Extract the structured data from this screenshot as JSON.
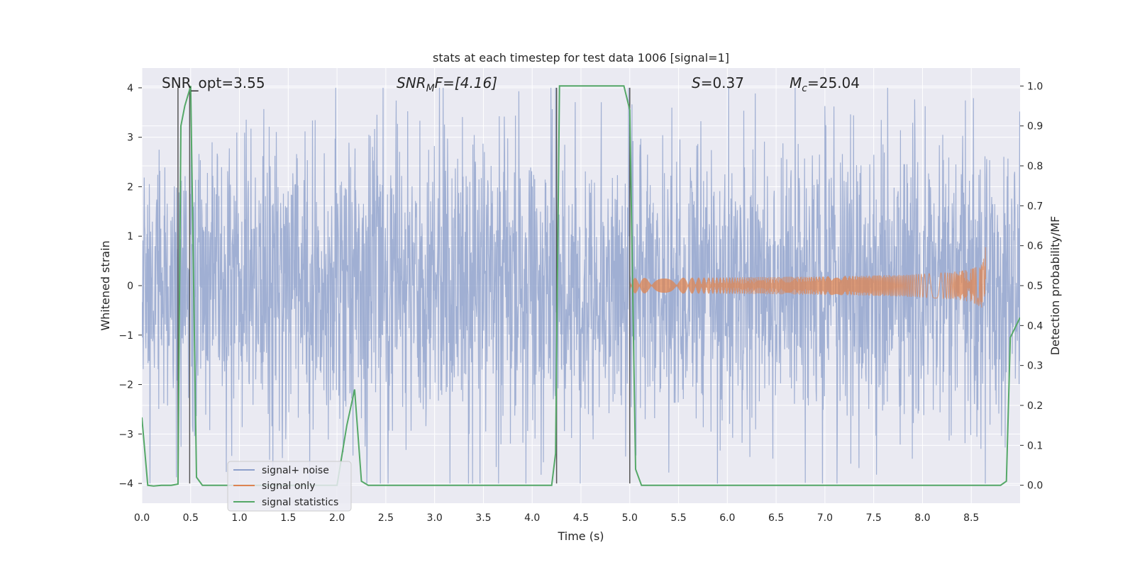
{
  "chart_data": {
    "type": "line",
    "title": "stats at each timestep for test data 1006 [signal=1]",
    "xlabel": "Time (s)",
    "ylabel_left": "Whitened strain",
    "ylabel_right": "Detection probability/MF",
    "xlim": [
      0.0,
      9.0
    ],
    "ylim_left": [
      -4.4,
      4.4
    ],
    "ylim_right": [
      -0.045,
      1.045
    ],
    "grid": true,
    "x_ticks": [
      0.0,
      0.5,
      1.0,
      1.5,
      2.0,
      2.5,
      3.0,
      3.5,
      4.0,
      4.5,
      5.0,
      5.5,
      6.0,
      6.5,
      7.0,
      7.5,
      8.0,
      8.5
    ],
    "x_tick_labels": [
      "0.0",
      "0.5",
      "1.0",
      "1.5",
      "2.0",
      "2.5",
      "3.0",
      "3.5",
      "4.0",
      "4.5",
      "5.0",
      "5.5",
      "6.0",
      "6.5",
      "7.0",
      "7.5",
      "8.0",
      "8.5"
    ],
    "y_left_ticks": [
      -4,
      -3,
      -2,
      -1,
      0,
      1,
      2,
      3,
      4
    ],
    "y_left_tick_labels": [
      "−4",
      "−3",
      "−2",
      "−1",
      "0",
      "1",
      "2",
      "3",
      "4"
    ],
    "y_right_ticks": [
      0.0,
      0.1,
      0.2,
      0.3,
      0.4,
      0.5,
      0.6,
      0.7,
      0.8,
      0.9,
      1.0
    ],
    "y_right_tick_labels": [
      "0.0",
      "0.1",
      "0.2",
      "0.3",
      "0.4",
      "0.5",
      "0.6",
      "0.7",
      "0.8",
      "0.9",
      "1.0"
    ],
    "annotations": {
      "snr_opt": "SNR_opt=3.55",
      "snr_mf_base": "SNR",
      "snr_mf_sub": "M",
      "snr_mf_rest": "F=[4.16]",
      "s_var": "S",
      "s_rest": "=0.37",
      "mc_var": "M",
      "mc_sub": "c",
      "mc_rest": "=25.04"
    },
    "legend": {
      "placement": "lower-left",
      "entries": [
        {
          "label": "signal+ noise",
          "color": "#8da0cb"
        },
        {
          "label": "signal only",
          "color": "#dd8452"
        },
        {
          "label": "signal statistics",
          "color": "#55a868"
        }
      ]
    },
    "vertical_markers": [
      0.37,
      0.49,
      4.25,
      5.0
    ],
    "vertical_marker_range": [
      -4,
      4
    ],
    "noise": {
      "name": "signal+ noise",
      "color": "#8da0cb",
      "t_range": [
        0.0,
        9.0
      ],
      "approx_amplitude": 1.6,
      "peak_max": 4.0,
      "peak_min": -4.0
    },
    "signal_only": {
      "name": "signal only",
      "color": "#dd8452",
      "t_start": 5.0,
      "t_merger": 8.65,
      "peak_amplitude": 0.85
    },
    "statistics": {
      "name": "signal statistics",
      "color": "#55a868",
      "t": [
        0.0,
        0.06,
        0.12,
        0.2,
        0.3,
        0.37,
        0.4,
        0.44,
        0.5,
        0.56,
        0.62,
        0.7,
        1.0,
        2.0,
        2.1,
        2.18,
        2.25,
        2.32,
        3.0,
        4.0,
        4.2,
        4.24,
        4.28,
        4.32,
        4.5,
        4.94,
        5.0,
        5.06,
        5.12,
        5.2,
        6.0,
        7.0,
        8.0,
        8.8,
        8.86,
        8.9,
        9.0
      ],
      "p": [
        0.17,
        0.0,
        -0.002,
        0.0,
        0.0,
        0.003,
        0.9,
        0.95,
        1.0,
        0.02,
        0.0,
        0.0,
        0.0,
        0.0,
        0.15,
        0.24,
        0.01,
        0.0,
        0.0,
        0.0,
        0.0,
        0.08,
        1.0,
        1.0,
        1.0,
        1.0,
        0.94,
        0.04,
        0.0,
        0.0,
        0.0,
        0.0,
        0.0,
        0.0,
        0.01,
        0.37,
        0.42
      ]
    }
  }
}
